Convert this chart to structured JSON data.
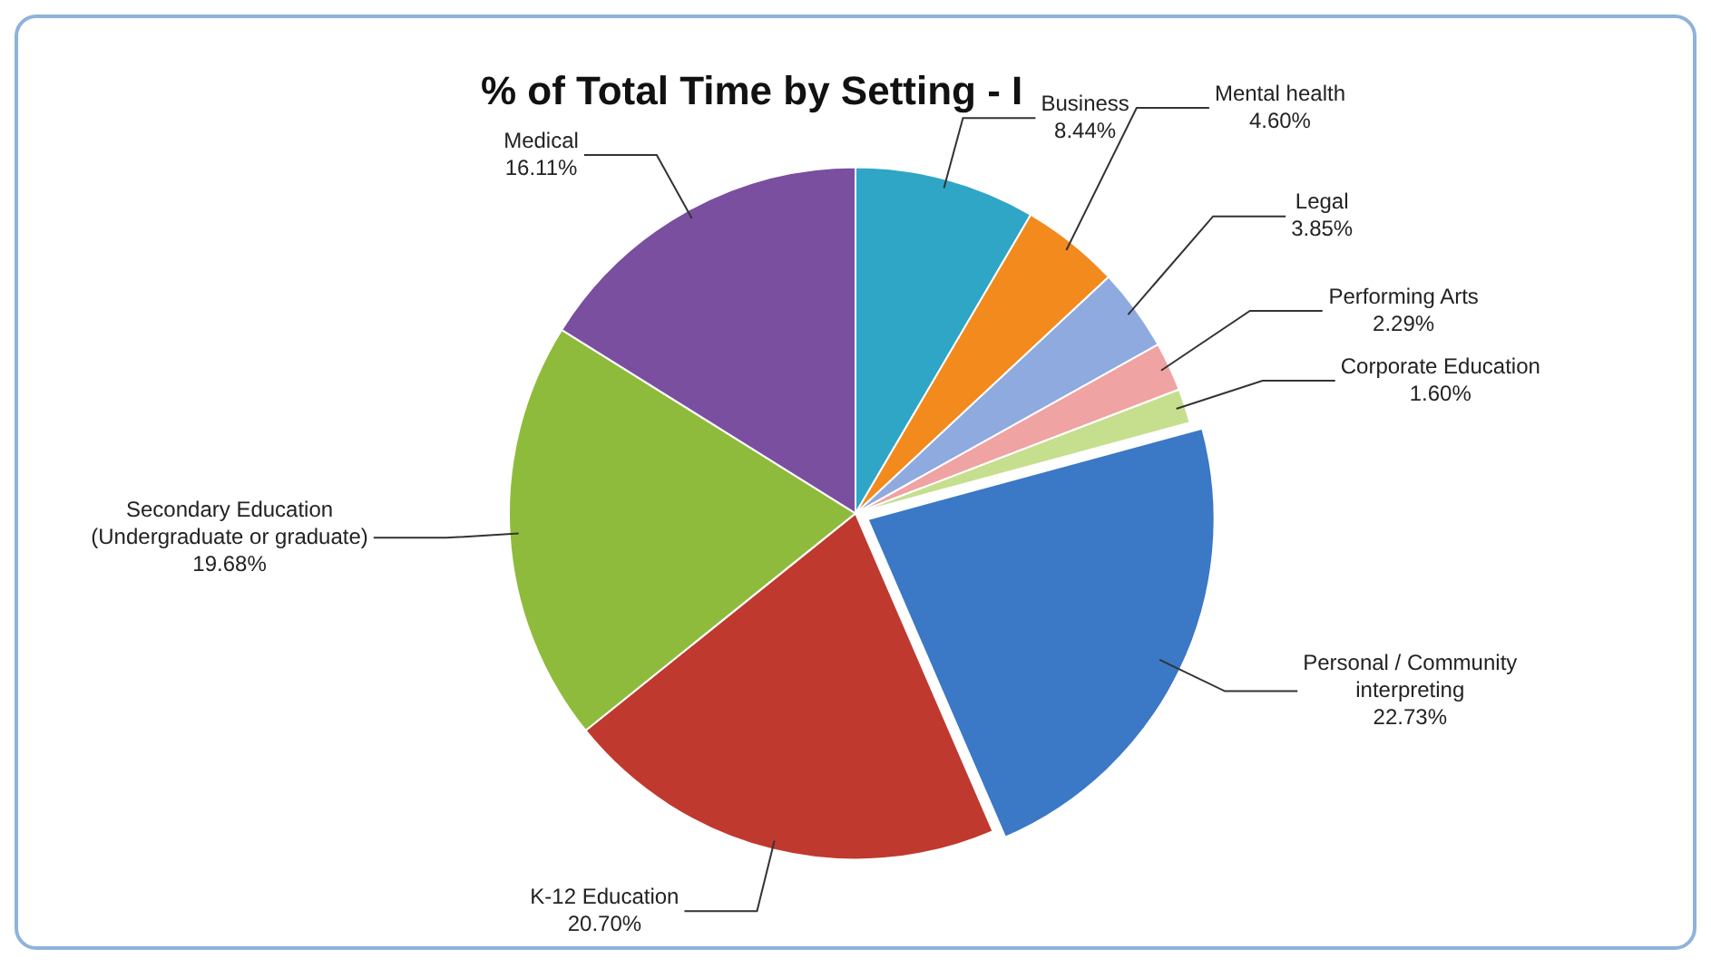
{
  "chart_data": {
    "type": "pie",
    "title": "% of Total Time by Setting - I",
    "categories": [
      "Business",
      "Mental health",
      "Legal",
      "Performing Arts",
      "Corporate Education",
      "Personal / Community interpreting",
      "K-12 Education",
      "Secondary Education (Undergraduate or graduate)",
      "Medical"
    ],
    "values": [
      8.44,
      4.6,
      3.85,
      2.29,
      1.6,
      22.73,
      20.7,
      19.68,
      16.11
    ],
    "value_labels": [
      "8.44%",
      "4.60%",
      "3.85%",
      "2.29%",
      "1.60%",
      "22.73%",
      "20.70%",
      "19.68%",
      "16.11%"
    ],
    "colors": [
      "#2fa6c6",
      "#f28a1e",
      "#8eaadf",
      "#f0a3a3",
      "#c6df8e",
      "#3b78c6",
      "#c0392f",
      "#8fbb3c",
      "#7a4f9f"
    ],
    "legend": false
  }
}
